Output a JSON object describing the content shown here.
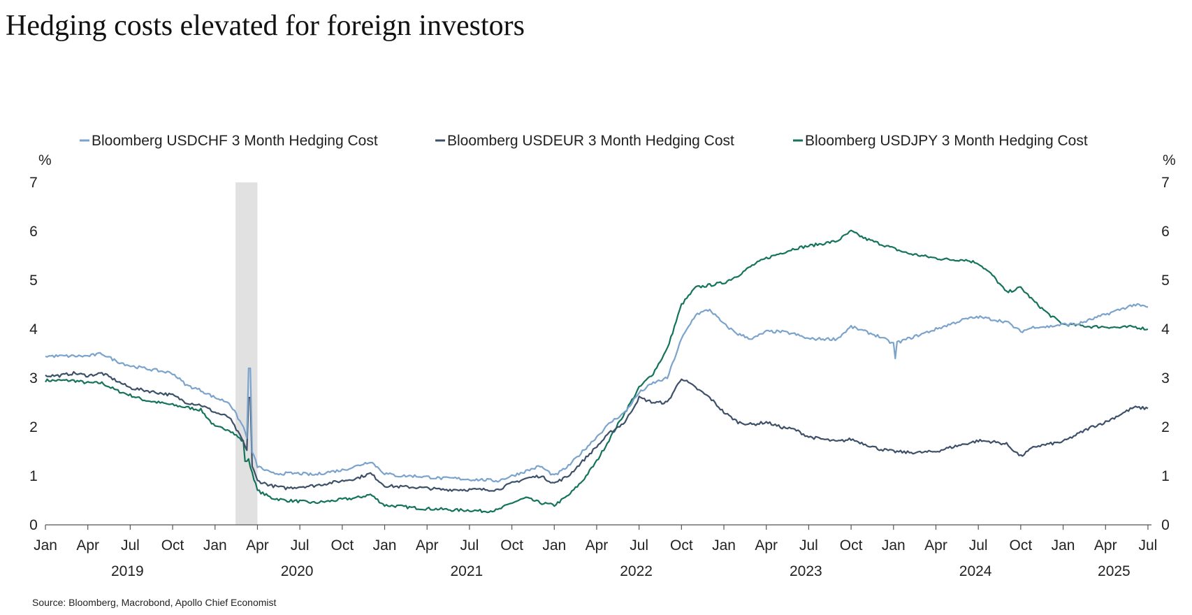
{
  "chart_data": {
    "type": "line",
    "title": "Hedging costs elevated for foreign investors",
    "source": "Source: Bloomberg, Macrobond, Apollo Chief Economist",
    "ylabel_left": "%",
    "ylabel_right": "%",
    "ylim": [
      0,
      7
    ],
    "yticks": [
      "0",
      "1",
      "2",
      "3",
      "4",
      "5",
      "6",
      "7"
    ],
    "x_start": "2019-01",
    "x_end": "2025-07",
    "month_labels": [
      "Jan",
      "Apr",
      "Jul",
      "Oct"
    ],
    "year_labels": [
      "2019",
      "2020",
      "2021",
      "2022",
      "2023",
      "2024",
      "2025"
    ],
    "shaded_period": {
      "start": "2020-02",
      "end": "2020-04",
      "color": "#E1E1E1"
    },
    "grid": false,
    "legend_position": "top",
    "frequency": "monthly",
    "series": [
      {
        "name": "Bloomberg USDCHF 3 Month Hedging Cost",
        "color": "#7BA3CC",
        "values": [
          3.45,
          3.45,
          3.45,
          3.45,
          3.5,
          3.35,
          3.25,
          3.2,
          3.15,
          3.1,
          2.85,
          2.75,
          2.6,
          2.5,
          2.0,
          1.2,
          1.05,
          1.05,
          1.05,
          1.02,
          1.08,
          1.12,
          1.2,
          1.3,
          1.05,
          1.0,
          1.0,
          0.98,
          0.95,
          0.95,
          0.93,
          0.92,
          0.9,
          1.0,
          1.1,
          1.2,
          1.0,
          1.2,
          1.5,
          1.8,
          2.1,
          2.3,
          2.7,
          2.9,
          3.0,
          3.8,
          4.3,
          4.4,
          4.1,
          3.9,
          3.8,
          3.95,
          3.95,
          3.9,
          3.8,
          3.8,
          3.8,
          4.05,
          3.95,
          3.85,
          3.7,
          3.8,
          3.9,
          4.0,
          4.1,
          4.2,
          4.25,
          4.2,
          4.15,
          3.95,
          4.05,
          4.05,
          4.1,
          4.1,
          4.2,
          4.3,
          4.4,
          4.5,
          4.45
        ]
      },
      {
        "name": "Bloomberg USDEUR 3 Month Hedging Cost",
        "color": "#3D5069",
        "values": [
          3.05,
          3.05,
          3.1,
          3.05,
          3.1,
          2.95,
          2.8,
          2.75,
          2.7,
          2.65,
          2.5,
          2.45,
          2.3,
          2.2,
          1.7,
          0.9,
          0.8,
          0.75,
          0.78,
          0.8,
          0.85,
          0.9,
          0.95,
          1.05,
          0.8,
          0.78,
          0.77,
          0.75,
          0.72,
          0.72,
          0.72,
          0.72,
          0.72,
          0.85,
          0.95,
          1.0,
          0.85,
          1.0,
          1.3,
          1.6,
          1.9,
          2.1,
          2.6,
          2.5,
          2.5,
          3.0,
          2.8,
          2.6,
          2.3,
          2.1,
          2.05,
          2.1,
          2.0,
          1.95,
          1.8,
          1.75,
          1.7,
          1.75,
          1.65,
          1.55,
          1.5,
          1.48,
          1.48,
          1.5,
          1.58,
          1.65,
          1.72,
          1.7,
          1.65,
          1.4,
          1.6,
          1.65,
          1.7,
          1.85,
          2.0,
          2.1,
          2.25,
          2.4,
          2.38
        ]
      },
      {
        "name": "Bloomberg USDJPY 3 Month Hedging Cost",
        "color": "#14735A",
        "values": [
          2.95,
          2.95,
          2.95,
          2.9,
          2.9,
          2.75,
          2.65,
          2.55,
          2.5,
          2.45,
          2.4,
          2.35,
          2.0,
          1.95,
          1.7,
          0.7,
          0.55,
          0.5,
          0.48,
          0.45,
          0.48,
          0.52,
          0.55,
          0.62,
          0.4,
          0.38,
          0.35,
          0.33,
          0.32,
          0.3,
          0.3,
          0.28,
          0.3,
          0.45,
          0.55,
          0.45,
          0.4,
          0.6,
          0.9,
          1.3,
          1.8,
          2.3,
          2.8,
          3.1,
          3.6,
          4.5,
          4.85,
          4.9,
          4.95,
          5.1,
          5.3,
          5.45,
          5.55,
          5.65,
          5.7,
          5.75,
          5.8,
          6.0,
          5.85,
          5.75,
          5.65,
          5.55,
          5.5,
          5.45,
          5.42,
          5.42,
          5.35,
          5.1,
          4.75,
          4.85,
          4.55,
          4.3,
          4.1,
          4.08,
          4.05,
          4.05,
          4.03,
          4.05,
          4.0
        ]
      }
    ]
  }
}
